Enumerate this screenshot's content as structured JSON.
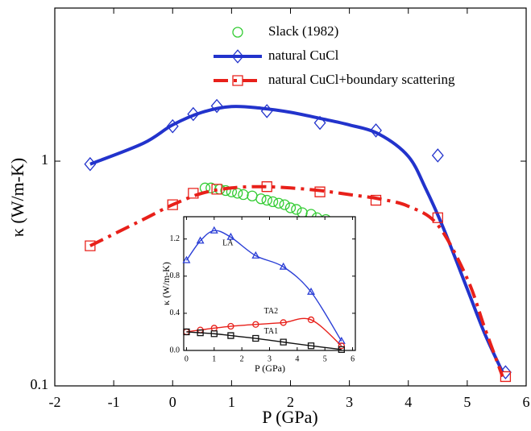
{
  "chart_data": [
    {
      "type": "scatter-line",
      "xlabel": "P (GPa)",
      "ylabel": "κ (W/m-K)",
      "xlim": [
        -2,
        6
      ],
      "xticks": [
        -2,
        -1,
        0,
        1,
        2,
        3,
        4,
        5,
        6
      ],
      "ylim": [
        0.1,
        4.8
      ],
      "yticks": [
        0.1,
        1
      ],
      "log_y": true,
      "legend": "upper center",
      "series": [
        {
          "name": "Slack (1982)",
          "color": "#33cc33",
          "marker": "circle",
          "line": "none",
          "x": [
            0.55,
            0.65,
            0.8,
            0.9,
            1.0,
            1.1,
            1.2,
            1.35,
            1.5,
            1.6,
            1.7,
            1.8,
            1.9,
            2.0,
            2.1,
            2.2,
            2.35,
            2.45,
            2.6,
            2.75
          ],
          "values": [
            0.76,
            0.76,
            0.75,
            0.74,
            0.73,
            0.72,
            0.71,
            0.7,
            0.68,
            0.67,
            0.66,
            0.65,
            0.64,
            0.62,
            0.61,
            0.59,
            0.58,
            0.56,
            0.55,
            0.53
          ]
        },
        {
          "name": "natural CuCl",
          "color": "#2233cc",
          "marker": "diamond",
          "line": "solid",
          "x": [
            -1.4,
            0,
            0.35,
            0.75,
            1.6,
            2.5,
            3.45,
            4.5,
            5.65
          ],
          "values": [
            0.97,
            1.43,
            1.62,
            1.76,
            1.67,
            1.48,
            1.37,
            1.06,
            0.115
          ],
          "fit_x": [
            -1.4,
            -0.5,
            0,
            0.5,
            1,
            1.5,
            2,
            2.5,
            3,
            3.5,
            4,
            4.3,
            4.6,
            5,
            5.3,
            5.6
          ],
          "fit_values": [
            0.97,
            1.2,
            1.45,
            1.65,
            1.75,
            1.72,
            1.65,
            1.55,
            1.45,
            1.32,
            1.05,
            0.75,
            0.5,
            0.27,
            0.17,
            0.115
          ]
        },
        {
          "name": "natural CuCl+boundary scattering",
          "color": "#e8201a",
          "marker": "square",
          "line": "dashdot",
          "x": [
            -1.4,
            0,
            0.35,
            0.75,
            1.6,
            2.5,
            3.45,
            4.5,
            5.65
          ],
          "values": [
            0.42,
            0.64,
            0.72,
            0.75,
            0.77,
            0.73,
            0.67,
            0.56,
            0.11
          ],
          "fit_x": [
            -1.4,
            -0.5,
            0,
            0.5,
            1,
            1.5,
            2,
            2.5,
            3,
            3.5,
            4,
            4.5,
            5,
            5.3,
            5.6
          ],
          "fit_values": [
            0.42,
            0.55,
            0.64,
            0.72,
            0.76,
            0.77,
            0.76,
            0.74,
            0.71,
            0.68,
            0.63,
            0.52,
            0.3,
            0.18,
            0.11
          ]
        }
      ]
    },
    {
      "type": "scatter-line",
      "xlabel": "P (GPa)",
      "ylabel": "κ (W/m-K)",
      "xlim": [
        -0.1,
        6.1
      ],
      "xticks": [
        0,
        1,
        2,
        3,
        4,
        5,
        6
      ],
      "ylim": [
        0,
        1.44
      ],
      "yticks": [
        {
          "value": 0,
          "label": "0.0"
        },
        {
          "value": 0.4,
          "label": "0.4"
        },
        {
          "value": 0.8,
          "label": "0.8"
        },
        {
          "value": 1.2,
          "label": "1.2"
        }
      ],
      "log_y": false,
      "series": [
        {
          "name": "LA",
          "color": "#2a3ed6",
          "marker": "triangle",
          "line": "smooth",
          "x": [
            0,
            0.5,
            1,
            1.6,
            2.5,
            3.5,
            4.5,
            5.6
          ],
          "values": [
            0.97,
            1.18,
            1.29,
            1.22,
            1.02,
            0.9,
            0.63,
            0.1
          ]
        },
        {
          "name": "TA2",
          "color": "#e8201a",
          "marker": "circle",
          "line": "smooth",
          "x": [
            0,
            0.5,
            1,
            1.6,
            2.5,
            3.5,
            4.5,
            5.6
          ],
          "values": [
            0.2,
            0.22,
            0.24,
            0.26,
            0.28,
            0.3,
            0.33,
            0.05
          ]
        },
        {
          "name": "TA1",
          "color": "#111111",
          "marker": "square",
          "line": "smooth",
          "x": [
            0,
            0.5,
            1,
            1.6,
            2.5,
            3.5,
            4.5,
            5.6
          ],
          "values": [
            0.2,
            0.19,
            0.18,
            0.16,
            0.13,
            0.09,
            0.05,
            0.01
          ]
        }
      ]
    }
  ]
}
